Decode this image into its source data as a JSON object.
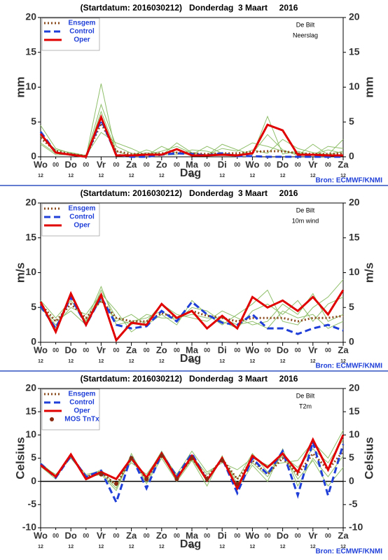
{
  "chart_data": [
    {
      "type": "line",
      "title": "(Startdatum: 2016030212)   Donderdag  3 Maart     2016",
      "location": "De Bilt",
      "variable": "Neerslag",
      "ylabel": "mm",
      "xlabel": "Dag",
      "source": "Bron: ECMWF/KNMI",
      "categories": [
        "Wo",
        "00",
        "Do",
        "00",
        "Vr",
        "00",
        "Za",
        "00",
        "Zo",
        "00",
        "Ma",
        "00",
        "Di",
        "00",
        "Wo",
        "00",
        "Do",
        "00",
        "Vr",
        "00",
        "Za"
      ],
      "hour_labels": [
        "12",
        null,
        "12",
        null,
        "12",
        null,
        "12",
        null,
        "12",
        null,
        "12",
        null,
        "12",
        null,
        "12",
        null,
        "12",
        null,
        "12",
        null,
        "12"
      ],
      "ylim": [
        0,
        20
      ],
      "yticks": [
        0,
        5,
        10,
        15,
        20
      ],
      "members": {
        "color": "#8fbf6a",
        "values": [
          [
            4.5,
            1.2,
            0.5,
            0.1,
            7.5,
            1.5,
            0.5,
            0.3,
            0.8,
            1.5,
            0.5,
            0.3,
            1.2,
            0.8,
            2.0,
            1.5,
            0.8,
            0.5,
            0.3,
            1.0,
            0.5
          ],
          [
            2.0,
            0.5,
            0.2,
            0,
            10.5,
            0.3,
            0.2,
            1.0,
            0.3,
            0.3,
            1.0,
            0.8,
            0.2,
            0.3,
            0.5,
            3.2,
            1.0,
            0.2,
            1.8,
            0.3,
            2.5
          ],
          [
            3.0,
            1.0,
            0.6,
            0.2,
            3.5,
            2.0,
            1.2,
            0.2,
            1.5,
            0.5,
            0.3,
            1.5,
            0.5,
            0.2,
            1.0,
            0.5,
            2.5,
            1.2,
            0.6,
            0.3,
            0.8
          ],
          [
            1.8,
            0.3,
            0.3,
            0,
            6.5,
            0.8,
            0.1,
            0.6,
            0.2,
            2.0,
            0.6,
            0.2,
            1.8,
            1.0,
            0.3,
            5.8,
            0.4,
            0.8,
            0.2,
            1.5,
            1.2
          ]
        ]
      },
      "series": [
        {
          "name": "Ensgem",
          "color": "#8b4a1c",
          "style": "dotted",
          "values": [
            2.7,
            0.8,
            0.4,
            0.1,
            4.8,
            0.8,
            0.4,
            0.4,
            0.5,
            0.6,
            0.5,
            0.4,
            0.5,
            0.5,
            0.7,
            0.8,
            0.8,
            0.5,
            0.4,
            0.4,
            0.5
          ]
        },
        {
          "name": "Control",
          "color": "#1f3fd8",
          "style": "dashed",
          "values": [
            3.6,
            0.6,
            0.3,
            0,
            5.3,
            0.3,
            0,
            0,
            0.3,
            0.5,
            0.4,
            0.2,
            0.5,
            0.1,
            0.1,
            0,
            0,
            0,
            0,
            0,
            0
          ]
        },
        {
          "name": "Oper",
          "color": "#e00000",
          "style": "solid",
          "values": [
            3.3,
            0.6,
            0.3,
            0,
            5.7,
            0.2,
            0.2,
            0.3,
            0.3,
            1.1,
            0.2,
            0.2,
            0.3,
            0.2,
            0.5,
            4.6,
            3.8,
            0.3,
            0.3,
            0.2,
            0.2
          ]
        }
      ]
    },
    {
      "type": "line",
      "title": "(Startdatum: 2016030212)   Donderdag  3 Maart     2016",
      "location": "De Bilt",
      "variable": "10m wind",
      "ylabel": "m/s",
      "xlabel": "Dag",
      "source": "Bron: ECMWF/KNMI",
      "categories": [
        "Wo",
        "00",
        "Do",
        "00",
        "Vr",
        "00",
        "Za",
        "00",
        "Zo",
        "00",
        "Ma",
        "00",
        "Di",
        "00",
        "Wo",
        "00",
        "Do",
        "00",
        "Vr",
        "00",
        "Za"
      ],
      "hour_labels": [
        "12",
        null,
        "12",
        null,
        "12",
        null,
        "12",
        null,
        "12",
        null,
        "12",
        null,
        "12",
        null,
        "12",
        null,
        "12",
        null,
        "12",
        null,
        "12"
      ],
      "ylim": [
        0,
        20
      ],
      "yticks": [
        0,
        5,
        10,
        15,
        20
      ],
      "members": {
        "color": "#8fbf6a",
        "values": [
          [
            6.0,
            3.5,
            6.0,
            3.0,
            8.0,
            2.5,
            3.0,
            3.5,
            4.5,
            3.0,
            5.0,
            4.5,
            3.0,
            2.0,
            4.5,
            5.5,
            4.0,
            6.0,
            3.0,
            5.5,
            6.5
          ],
          [
            5.0,
            2.5,
            5.0,
            4.0,
            7.0,
            4.5,
            1.5,
            3.0,
            5.5,
            4.0,
            3.5,
            3.0,
            4.5,
            3.5,
            2.5,
            3.0,
            5.5,
            4.0,
            7.0,
            3.0,
            4.0
          ],
          [
            5.5,
            2.0,
            6.5,
            3.0,
            6.0,
            3.0,
            4.0,
            2.5,
            4.0,
            2.5,
            6.0,
            4.0,
            2.5,
            4.0,
            5.5,
            7.5,
            3.0,
            2.5,
            5.0,
            6.5,
            9.0
          ],
          [
            4.8,
            3.0,
            4.5,
            2.5,
            7.5,
            3.5,
            2.5,
            4.0,
            3.5,
            3.5,
            4.0,
            3.5,
            3.5,
            2.5,
            3.0,
            2.0,
            4.5,
            3.5,
            4.0,
            2.0,
            3.0
          ]
        ]
      },
      "series": [
        {
          "name": "Ensgem",
          "color": "#8b4a1c",
          "style": "dotted",
          "values": [
            5.5,
            3.0,
            5.5,
            3.5,
            6.0,
            3.5,
            3.0,
            3.0,
            4.2,
            3.5,
            4.5,
            3.8,
            3.5,
            3.0,
            3.5,
            3.5,
            3.5,
            3.0,
            3.5,
            3.5,
            3.8
          ]
        },
        {
          "name": "Control",
          "color": "#1f3fd8",
          "style": "dashed",
          "values": [
            5.2,
            2.0,
            6.5,
            2.5,
            6.5,
            2.5,
            2.0,
            2.3,
            4.5,
            3.0,
            5.8,
            4.0,
            2.8,
            2.5,
            4.0,
            2.0,
            2.0,
            1.2,
            2.0,
            2.5,
            1.7
          ]
        },
        {
          "name": "Oper",
          "color": "#e00000",
          "style": "solid",
          "values": [
            5.8,
            1.5,
            7.0,
            2.5,
            6.8,
            0.3,
            2.8,
            2.5,
            5.5,
            3.5,
            4.5,
            2.0,
            3.8,
            2.0,
            6.5,
            5.0,
            6.0,
            4.5,
            6.5,
            4.0,
            7.5
          ]
        }
      ]
    },
    {
      "type": "line",
      "title": "(Startdatum: 2016030212)   Donderdag  3 Maart     2016",
      "location": "De Bilt",
      "variable": "T2m",
      "ylabel": "Celsius",
      "xlabel": "Dag",
      "source": "Bron: ECMWF/KNMI",
      "categories": [
        "Wo",
        "00",
        "Do",
        "00",
        "Vr",
        "00",
        "Za",
        "00",
        "Zo",
        "00",
        "Ma",
        "00",
        "Di",
        "00",
        "Wo",
        "00",
        "Do",
        "00",
        "Vr",
        "00",
        "Za"
      ],
      "hour_labels": [
        "12",
        null,
        "12",
        null,
        "12",
        null,
        "12",
        null,
        "12",
        null,
        "12",
        null,
        "12",
        null,
        "12",
        null,
        "12",
        null,
        "12",
        null,
        "12"
      ],
      "ylim": [
        -10,
        20
      ],
      "yticks": [
        -10,
        -5,
        0,
        5,
        10,
        15,
        20
      ],
      "zero_line": true,
      "members": {
        "color": "#8fbf6a",
        "values": [
          [
            3.5,
            1.5,
            5.0,
            1.0,
            2.5,
            -1.0,
            4.5,
            1.0,
            6.5,
            1.0,
            5.5,
            1.5,
            4.5,
            0.5,
            6.0,
            2.0,
            5.5,
            3.0,
            7.0,
            4.0,
            9.0
          ],
          [
            3.2,
            0.5,
            6.0,
            0.8,
            1.5,
            -2.0,
            5.5,
            -0.5,
            5.0,
            0.0,
            4.5,
            -1.0,
            5.5,
            -1.5,
            3.5,
            0.0,
            7.0,
            -1.0,
            5.0,
            1.0,
            5.5
          ],
          [
            4.0,
            1.2,
            5.2,
            1.5,
            2.2,
            0.5,
            4.0,
            1.5,
            6.0,
            1.5,
            6.5,
            2.0,
            4.0,
            2.5,
            5.0,
            3.5,
            4.0,
            4.5,
            8.5,
            5.0,
            11.0
          ],
          [
            3.7,
            0.8,
            5.8,
            0.3,
            1.8,
            -1.5,
            6.0,
            0.0,
            5.5,
            0.5,
            4.8,
            0.0,
            5.2,
            -0.5,
            4.0,
            1.0,
            6.0,
            0.5,
            4.5,
            -1.0,
            3.0
          ]
        ]
      },
      "series": [
        {
          "name": "Ensgem",
          "color": "#8b4a1c",
          "style": "dotted",
          "values": [
            3.6,
            1.0,
            5.5,
            1.0,
            2.0,
            -0.8,
            5.0,
            0.5,
            5.8,
            0.8,
            5.0,
            0.8,
            4.8,
            0.5,
            4.5,
            1.5,
            5.0,
            1.5,
            6.0,
            2.5,
            6.5
          ]
        },
        {
          "name": "Control",
          "color": "#1f3fd8",
          "style": "dashed",
          "values": [
            3.8,
            0.8,
            5.5,
            1.0,
            2.3,
            -4.5,
            5.5,
            -1.5,
            6.0,
            1.0,
            6.0,
            0.2,
            5.0,
            -2.5,
            5.0,
            1.5,
            6.5,
            -3.0,
            8.5,
            -3.0,
            8.0
          ]
        },
        {
          "name": "Oper",
          "color": "#e00000",
          "style": "solid",
          "values": [
            3.5,
            1.0,
            5.8,
            0.5,
            2.0,
            0.5,
            5.0,
            0.8,
            6.0,
            0.5,
            5.5,
            0.2,
            5.0,
            -1.5,
            5.5,
            3.0,
            6.0,
            2.0,
            9.0,
            2.5,
            10.0
          ]
        },
        {
          "name": "MOS TnTx",
          "color": "#8b2a10",
          "style": "dots",
          "values": [
            null,
            null,
            null,
            null,
            1.5,
            -0.5,
            5.0,
            0.5,
            5.5,
            0.5,
            5.0,
            0.5,
            4.5,
            -0.5,
            null,
            null,
            null,
            null,
            null,
            null,
            null
          ]
        }
      ]
    }
  ]
}
